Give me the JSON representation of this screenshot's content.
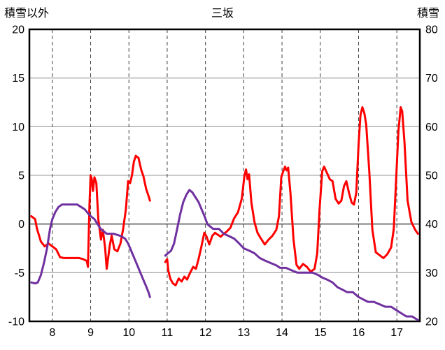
{
  "chart_data": {
    "type": "line",
    "title": "三坂",
    "grid": true,
    "legend": "none",
    "x_axis": {
      "ticks": [
        8,
        9,
        10,
        11,
        12,
        13,
        14,
        15,
        16,
        17
      ],
      "range": [
        7.4,
        17.6
      ],
      "gridline_style": "dashed"
    },
    "y_left": {
      "label": "積雪以外",
      "range": [
        -10,
        20
      ],
      "ticks": [
        20,
        15,
        10,
        5,
        0,
        -5,
        -10
      ],
      "gridline_style": "solid"
    },
    "y_right": {
      "label": "積雪",
      "range": [
        20,
        80
      ],
      "ticks": [
        80,
        70,
        60,
        50,
        40,
        30,
        20
      ]
    },
    "series": [
      {
        "name": "積雪以外",
        "axis": "left",
        "color": "#ff0000",
        "width": 3,
        "segments": [
          [
            [
              7.45,
              0.8
            ],
            [
              7.55,
              0.5
            ],
            [
              7.6,
              -0.5
            ],
            [
              7.7,
              -1.8
            ],
            [
              7.8,
              -2.3
            ],
            [
              7.9,
              -2.0
            ],
            [
              8.0,
              -2.3
            ],
            [
              8.1,
              -2.6
            ],
            [
              8.2,
              -3.4
            ],
            [
              8.3,
              -3.5
            ],
            [
              8.5,
              -3.5
            ],
            [
              8.7,
              -3.5
            ],
            [
              8.8,
              -3.6
            ],
            [
              8.9,
              -3.8
            ],
            [
              8.93,
              -4.4
            ],
            [
              8.97,
              2.0
            ],
            [
              9.0,
              5.0
            ],
            [
              9.03,
              4.6
            ],
            [
              9.06,
              3.4
            ],
            [
              9.1,
              4.8
            ],
            [
              9.15,
              4.2
            ],
            [
              9.2,
              0.5
            ],
            [
              9.27,
              -1.6
            ],
            [
              9.32,
              -0.6
            ],
            [
              9.38,
              -2.5
            ],
            [
              9.42,
              -4.6
            ],
            [
              9.5,
              -2.2
            ],
            [
              9.55,
              -1.2
            ],
            [
              9.62,
              -2.6
            ],
            [
              9.7,
              -2.8
            ],
            [
              9.78,
              -2.0
            ],
            [
              9.85,
              -0.5
            ],
            [
              9.92,
              1.5
            ],
            [
              9.98,
              4.4
            ],
            [
              10.03,
              4.2
            ],
            [
              10.08,
              5.0
            ],
            [
              10.13,
              6.4
            ],
            [
              10.18,
              7.0
            ],
            [
              10.25,
              6.8
            ],
            [
              10.32,
              5.6
            ],
            [
              10.38,
              4.9
            ],
            [
              10.45,
              3.6
            ],
            [
              10.52,
              2.8
            ],
            [
              10.55,
              2.4
            ]
          ],
          [
            [
              10.95,
              -3.9
            ],
            [
              11.0,
              -3.6
            ],
            [
              11.03,
              -4.8
            ],
            [
              11.08,
              -5.6
            ],
            [
              11.15,
              -6.1
            ],
            [
              11.22,
              -6.3
            ],
            [
              11.3,
              -5.6
            ],
            [
              11.38,
              -5.9
            ],
            [
              11.45,
              -5.4
            ],
            [
              11.52,
              -5.7
            ],
            [
              11.6,
              -5.0
            ],
            [
              11.68,
              -4.4
            ],
            [
              11.75,
              -4.6
            ],
            [
              11.82,
              -3.6
            ],
            [
              11.9,
              -2.2
            ],
            [
              11.97,
              -0.9
            ],
            [
              12.03,
              -1.3
            ],
            [
              12.1,
              -2.1
            ],
            [
              12.18,
              -1.2
            ],
            [
              12.25,
              -0.9
            ],
            [
              12.32,
              -1.1
            ],
            [
              12.4,
              -1.3
            ],
            [
              12.48,
              -1.0
            ],
            [
              12.55,
              -0.8
            ],
            [
              12.65,
              -0.4
            ],
            [
              12.75,
              0.6
            ],
            [
              12.85,
              1.2
            ],
            [
              12.95,
              2.6
            ],
            [
              13.02,
              5.0
            ],
            [
              13.06,
              5.6
            ],
            [
              13.1,
              4.6
            ],
            [
              13.14,
              5.1
            ],
            [
              13.2,
              2.2
            ],
            [
              13.28,
              0.2
            ],
            [
              13.36,
              -0.9
            ],
            [
              13.45,
              -1.5
            ],
            [
              13.55,
              -2.1
            ],
            [
              13.65,
              -1.6
            ],
            [
              13.75,
              -1.2
            ],
            [
              13.85,
              -0.6
            ],
            [
              13.92,
              0.8
            ],
            [
              13.98,
              4.8
            ],
            [
              14.03,
              5.4
            ],
            [
              14.08,
              5.9
            ],
            [
              14.12,
              5.5
            ],
            [
              14.16,
              5.8
            ],
            [
              14.22,
              3.2
            ],
            [
              14.3,
              -1.6
            ],
            [
              14.38,
              -4.2
            ],
            [
              14.45,
              -4.6
            ],
            [
              14.55,
              -4.1
            ],
            [
              14.65,
              -4.4
            ],
            [
              14.75,
              -4.9
            ],
            [
              14.85,
              -4.6
            ],
            [
              14.92,
              -3.0
            ],
            [
              14.98,
              1.5
            ],
            [
              15.05,
              5.4
            ],
            [
              15.1,
              5.9
            ],
            [
              15.18,
              5.2
            ],
            [
              15.25,
              4.6
            ],
            [
              15.32,
              4.4
            ],
            [
              15.4,
              2.6
            ],
            [
              15.48,
              2.1
            ],
            [
              15.55,
              2.4
            ],
            [
              15.62,
              3.9
            ],
            [
              15.68,
              4.4
            ],
            [
              15.75,
              3.2
            ],
            [
              15.82,
              2.2
            ],
            [
              15.88,
              2.0
            ],
            [
              15.94,
              3.2
            ],
            [
              16.0,
              8.2
            ],
            [
              16.05,
              11.2
            ],
            [
              16.1,
              12.0
            ],
            [
              16.15,
              11.4
            ],
            [
              16.2,
              10.2
            ],
            [
              16.28,
              5.4
            ],
            [
              16.36,
              -0.6
            ],
            [
              16.45,
              -2.9
            ],
            [
              16.55,
              -3.2
            ],
            [
              16.65,
              -3.5
            ],
            [
              16.75,
              -3.1
            ],
            [
              16.85,
              -2.4
            ],
            [
              16.92,
              -0.5
            ],
            [
              16.98,
              4.5
            ],
            [
              17.04,
              9.5
            ],
            [
              17.1,
              12.0
            ],
            [
              17.14,
              11.6
            ],
            [
              17.2,
              8.4
            ],
            [
              17.28,
              2.4
            ],
            [
              17.38,
              0.2
            ],
            [
              17.48,
              -0.6
            ],
            [
              17.55,
              -1.0
            ]
          ]
        ]
      },
      {
        "name": "積雪",
        "axis": "right",
        "color": "#7030a0",
        "width": 3,
        "segments": [
          [
            [
              7.45,
              28
            ],
            [
              7.55,
              27.8
            ],
            [
              7.62,
              28
            ],
            [
              7.7,
              29.5
            ],
            [
              7.78,
              32
            ],
            [
              7.86,
              35
            ],
            [
              7.94,
              39
            ],
            [
              8.0,
              41
            ],
            [
              8.08,
              42.5
            ],
            [
              8.16,
              43.5
            ],
            [
              8.25,
              44
            ],
            [
              8.45,
              44
            ],
            [
              8.65,
              44
            ],
            [
              8.75,
              43.5
            ],
            [
              8.85,
              43
            ],
            [
              8.95,
              42
            ],
            [
              9.02,
              41.5
            ],
            [
              9.1,
              41
            ],
            [
              9.18,
              40
            ],
            [
              9.26,
              39
            ],
            [
              9.34,
              38.5
            ],
            [
              9.42,
              38
            ],
            [
              9.6,
              38
            ],
            [
              9.8,
              37.5
            ],
            [
              9.9,
              37
            ],
            [
              9.98,
              36
            ],
            [
              10.06,
              34.5
            ],
            [
              10.14,
              33
            ],
            [
              10.22,
              31.5
            ],
            [
              10.3,
              30
            ],
            [
              10.38,
              28.5
            ],
            [
              10.46,
              27
            ],
            [
              10.52,
              25.8
            ],
            [
              10.55,
              25
            ]
          ],
          [
            [
              10.95,
              33.5
            ],
            [
              11.02,
              34
            ],
            [
              11.1,
              34.5
            ],
            [
              11.18,
              36
            ],
            [
              11.26,
              39
            ],
            [
              11.34,
              42
            ],
            [
              11.42,
              44.5
            ],
            [
              11.5,
              46
            ],
            [
              11.58,
              47
            ],
            [
              11.66,
              46.5
            ],
            [
              11.74,
              45.5
            ],
            [
              11.82,
              44.5
            ],
            [
              11.9,
              43
            ],
            [
              11.98,
              41.5
            ],
            [
              12.05,
              40
            ],
            [
              12.12,
              39.5
            ],
            [
              12.2,
              39
            ],
            [
              12.35,
              39
            ],
            [
              12.48,
              38
            ],
            [
              12.62,
              37.5
            ],
            [
              12.75,
              37
            ],
            [
              12.88,
              36
            ],
            [
              13.0,
              35
            ],
            [
              13.15,
              34.5
            ],
            [
              13.28,
              34
            ],
            [
              13.42,
              33
            ],
            [
              13.55,
              32.5
            ],
            [
              13.7,
              32
            ],
            [
              13.85,
              31.5
            ],
            [
              13.95,
              31
            ],
            [
              14.1,
              31
            ],
            [
              14.25,
              30.5
            ],
            [
              14.4,
              30
            ],
            [
              14.6,
              30
            ],
            [
              14.8,
              30
            ],
            [
              14.95,
              29.5
            ],
            [
              15.05,
              29
            ],
            [
              15.2,
              28.5
            ],
            [
              15.32,
              28
            ],
            [
              15.45,
              27
            ],
            [
              15.58,
              26.5
            ],
            [
              15.7,
              26
            ],
            [
              15.85,
              26
            ],
            [
              16.0,
              25
            ],
            [
              16.12,
              24.5
            ],
            [
              16.25,
              24
            ],
            [
              16.4,
              24
            ],
            [
              16.55,
              23.5
            ],
            [
              16.7,
              23
            ],
            [
              16.85,
              23
            ],
            [
              16.95,
              22.5
            ],
            [
              17.05,
              22
            ],
            [
              17.15,
              21.5
            ],
            [
              17.25,
              21
            ],
            [
              17.4,
              21
            ],
            [
              17.5,
              20.5
            ],
            [
              17.55,
              20.3
            ]
          ]
        ]
      }
    ],
    "style": {
      "plot_border_color": "#000000",
      "gridline_color": "#ababab",
      "zero_line_color": "#808080",
      "dashed_line_color": "#404040",
      "text_color": "#000000",
      "background": "#ffffff"
    }
  }
}
